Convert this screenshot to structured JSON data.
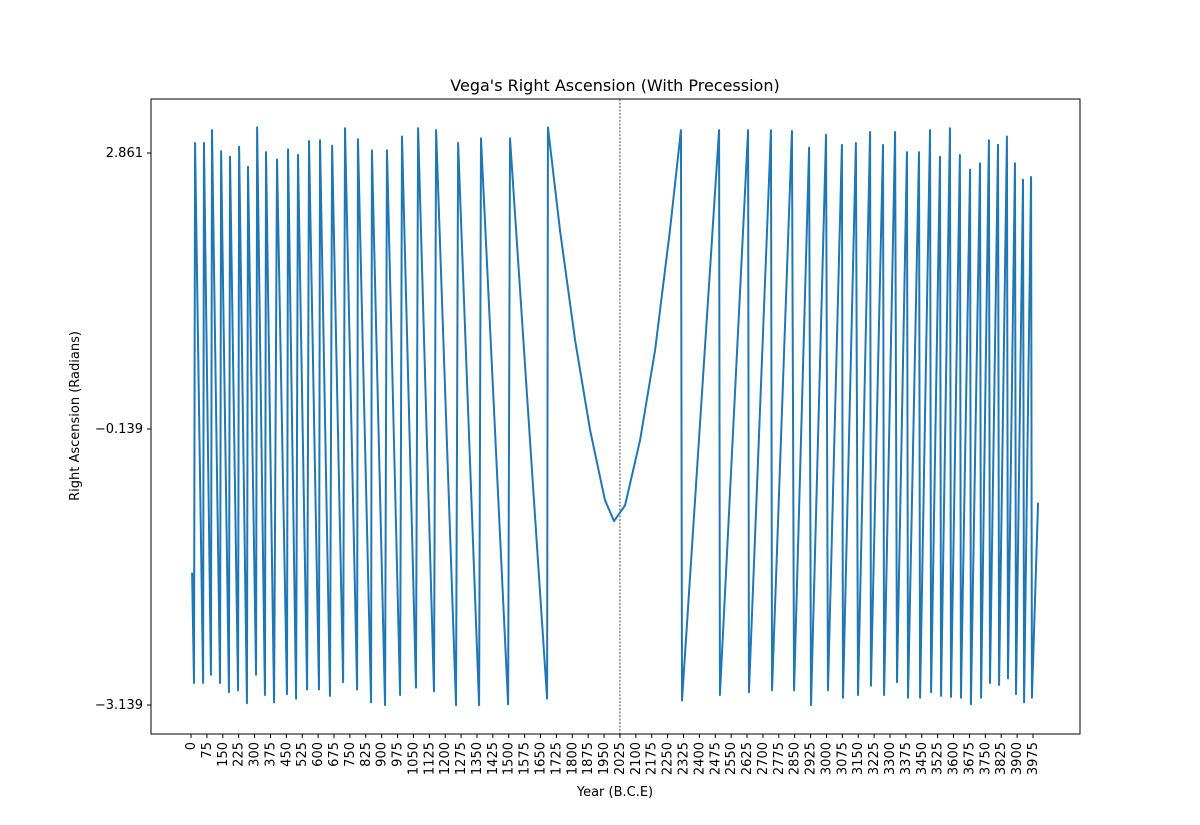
{
  "chart_data": {
    "type": "line",
    "title": "Vega's Right Ascension (With Precession)",
    "x_label": "Year (B.C.E)",
    "y_label": "Right Ascension (Radians)",
    "xlim": [
      -189,
      4197
    ],
    "ylim": [
      -3.454,
      3.448
    ],
    "xticks": [
      0,
      75,
      150,
      225,
      300,
      375,
      450,
      525,
      600,
      675,
      750,
      825,
      900,
      975,
      1050,
      1125,
      1200,
      1275,
      1350,
      1425,
      1500,
      1575,
      1650,
      1725,
      1800,
      1875,
      1950,
      2025,
      2100,
      2175,
      2250,
      2325,
      2400,
      2475,
      2550,
      2625,
      2700,
      2775,
      2850,
      2925,
      3000,
      3075,
      3150,
      3225,
      3300,
      3375,
      3450,
      3525,
      3600,
      3675,
      3750,
      3825,
      3900,
      3975
    ],
    "yticks": [
      {
        "value": -3.139,
        "label": "−3.139"
      },
      {
        "value": -0.139,
        "label": "−0.139"
      },
      2.861
    ],
    "reference_line_x": 2025,
    "series": [
      {
        "color": "#1f77b4",
        "x": [
          5,
          14,
          19,
          57,
          61,
          94,
          99,
          137,
          142,
          179,
          184,
          222,
          227,
          264,
          269,
          307,
          312,
          349,
          354,
          392,
          406,
          453,
          458,
          496,
          505,
          548,
          557,
          604,
          609,
          656,
          666,
          718,
          727,
          784,
          788,
          850,
          854,
          916,
          925,
          987,
          996,
          1062,
          1072,
          1147,
          1157,
          1251,
          1261,
          1360,
          1369,
          1497,
          1506,
          1681,
          1685,
          1742,
          1813,
          1884,
          1954,
          1997,
          2049,
          2120,
          2191,
          2261,
          2313,
          2318,
          2493,
          2497,
          2630,
          2634,
          2738,
          2743,
          2837,
          2847,
          2918,
          2927,
          2998,
          3007,
          3073,
          3078,
          3139,
          3149,
          3206,
          3210,
          3267,
          3272,
          3324,
          3333,
          3380,
          3385,
          3437,
          3442,
          3489,
          3494,
          3536,
          3541,
          3583,
          3588,
          3630,
          3635,
          3678,
          3682,
          3725,
          3730,
          3767,
          3772,
          3810,
          3815,
          3852,
          3857,
          3890,
          3895,
          3928,
          3933,
          3966,
          3970,
          3999
        ],
        "values": [
          -1.7,
          -2.9,
          2.97,
          -2.9,
          2.97,
          -2.81,
          3.11,
          -2.9,
          2.88,
          -3.0,
          2.82,
          -2.98,
          2.93,
          -3.12,
          2.71,
          -2.81,
          3.14,
          -3.03,
          2.87,
          -3.11,
          2.79,
          -3.02,
          2.9,
          -3.07,
          2.84,
          -2.97,
          2.99,
          -2.97,
          3.0,
          -3.04,
          2.94,
          -2.89,
          3.13,
          -2.97,
          3.01,
          -3.11,
          2.89,
          -3.14,
          2.89,
          -3.03,
          3.04,
          -2.95,
          3.13,
          -2.99,
          3.11,
          -3.14,
          2.97,
          -3.14,
          3.02,
          -3.13,
          3.02,
          -3.07,
          3.14,
          2.02,
          0.83,
          -0.15,
          -0.91,
          -1.14,
          -0.97,
          -0.26,
          0.72,
          2.02,
          3.11,
          -3.09,
          3.11,
          -3.03,
          3.11,
          -3.0,
          3.11,
          -2.98,
          3.1,
          -2.98,
          2.92,
          -3.14,
          3.06,
          -2.98,
          2.95,
          -3.06,
          2.97,
          -3.03,
          3.09,
          -2.93,
          2.95,
          -3.03,
          3.09,
          -2.89,
          2.87,
          -3.06,
          2.87,
          -3.06,
          3.11,
          -3.0,
          2.82,
          -3.04,
          3.13,
          -3.05,
          2.84,
          -3.06,
          2.68,
          -3.13,
          2.75,
          -3.06,
          3.0,
          -2.9,
          2.95,
          -2.92,
          3.04,
          -2.85,
          2.75,
          -3.02,
          2.57,
          -3.11,
          2.6,
          -3.06,
          -0.94
        ]
      }
    ]
  }
}
